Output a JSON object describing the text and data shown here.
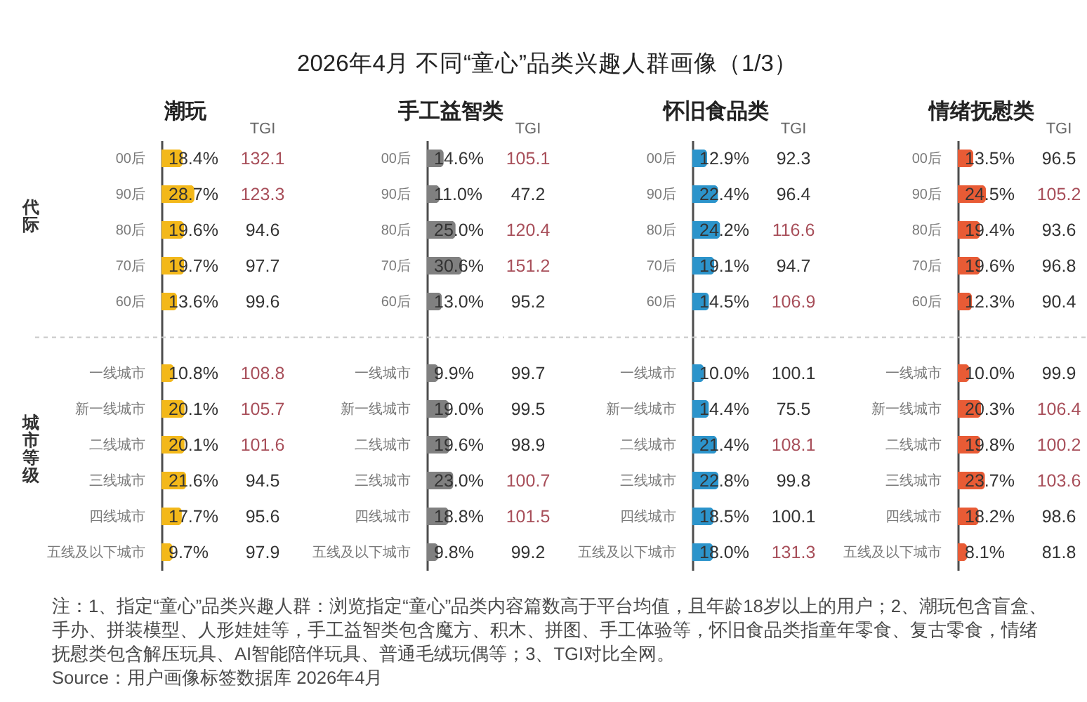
{
  "chart_data": [
    {
      "type": "other",
      "title": "2026年4月 不同“童心”品类兴趣人群画像（1/3）",
      "annotations": [
        "注：1、指定“童心”品类兴趣人群：浏览指定“童心”品类内容篇数高于平台均值，且年龄18岁以上的用户；2、潮玩包含盲盒、手办、拼装模型、人形娃娃等，手工益智类包含魔方、积木、拼图、手工体验等，怀旧食品类指童年零食、复古零食，情绪抚慰类包含解压玩具、AI智能陪伴玩具、普通毛绒玩偶等；3、TGI对比全网。",
        "Source：用户画像标签数据库 2026年4月"
      ]
    },
    {
      "type": "bar",
      "orientation": "horizontal",
      "title": "潮玩",
      "annotations": [
        "代际",
        "城市等级"
      ],
      "categories": [
        "00后",
        "90后",
        "80后",
        "70后",
        "60后",
        "一线城市",
        "新一线城市",
        "二线城市",
        "三线城市",
        "四线城市",
        "五线及以下城市"
      ],
      "series": [
        {
          "color": "#f3b81a",
          "values": [
            18.4,
            28.7,
            19.6,
            19.7,
            13.6,
            10.8,
            20.1,
            20.1,
            21.6,
            17.7,
            9.7
          ],
          "value_labels": [
            "18.4%",
            "28.7%",
            "19.6%",
            "19.7%",
            "13.6%",
            "10.8%",
            "20.1%",
            "20.1%",
            "21.6%",
            "17.7%",
            "9.7%"
          ]
        }
      ]
    },
    {
      "type": "other",
      "title": "TGI",
      "data_labels": true,
      "values": [
        132.1,
        123.3,
        94.6,
        97.7,
        99.6,
        108.8,
        105.7,
        101.6,
        94.5,
        95.6,
        97.9
      ],
      "colors": [
        "#a84f5a",
        "#a84f5a",
        "#333333",
        "#333333",
        "#333333",
        "#a84f5a",
        "#a84f5a",
        "#a84f5a",
        "#333333",
        "#333333",
        "#333333"
      ]
    },
    {
      "type": "bar",
      "orientation": "horizontal",
      "title": "手工益智类",
      "categories": [
        "00后",
        "90后",
        "80后",
        "70后",
        "60后",
        "一线城市",
        "新一线城市",
        "二线城市",
        "三线城市",
        "四线城市",
        "五线及以下城市"
      ],
      "series": [
        {
          "color": "#808080",
          "values": [
            14.6,
            11.0,
            25.0,
            30.6,
            13.0,
            9.9,
            19.0,
            19.6,
            23.0,
            18.8,
            9.8
          ],
          "value_labels": [
            "14.6%",
            "11.0%",
            "25.0%",
            "30.6%",
            "13.0%",
            "9.9%",
            "19.0%",
            "19.6%",
            "23.0%",
            "18.8%",
            "9.8%"
          ]
        }
      ]
    },
    {
      "type": "other",
      "title": "TGI",
      "data_labels": true,
      "values": [
        105.1,
        47.2,
        120.4,
        151.2,
        95.2,
        99.7,
        99.5,
        98.9,
        100.7,
        101.5,
        99.2
      ],
      "colors": [
        "#a84f5a",
        "#333333",
        "#a84f5a",
        "#a84f5a",
        "#333333",
        "#333333",
        "#333333",
        "#333333",
        "#a84f5a",
        "#a84f5a",
        "#333333"
      ]
    },
    {
      "type": "bar",
      "orientation": "horizontal",
      "title": "怀旧食品类",
      "categories": [
        "00后",
        "90后",
        "80后",
        "70后",
        "60后",
        "一线城市",
        "新一线城市",
        "二线城市",
        "三线城市",
        "四线城市",
        "五线及以下城市"
      ],
      "series": [
        {
          "color": "#2c94cb",
          "values": [
            12.9,
            22.4,
            24.2,
            19.1,
            14.5,
            10.0,
            14.4,
            21.4,
            22.8,
            18.5,
            18.0
          ],
          "value_labels": [
            "12.9%",
            "22.4%",
            "24.2%",
            "19.1%",
            "14.5%",
            "10.0%",
            "14.4%",
            "21.4%",
            "22.8%",
            "18.5%",
            "18.0%"
          ]
        }
      ]
    },
    {
      "type": "other",
      "title": "TGI",
      "data_labels": true,
      "values": [
        92.3,
        96.4,
        116.6,
        94.7,
        106.9,
        100.1,
        75.5,
        108.1,
        99.8,
        100.1,
        131.3
      ],
      "colors": [
        "#333333",
        "#333333",
        "#a84f5a",
        "#333333",
        "#a84f5a",
        "#333333",
        "#333333",
        "#a84f5a",
        "#333333",
        "#333333",
        "#a84f5a"
      ]
    },
    {
      "type": "bar",
      "orientation": "horizontal",
      "title": "情绪抚慰类",
      "categories": [
        "00后",
        "90后",
        "80后",
        "70后",
        "60后",
        "一线城市",
        "新一线城市",
        "二线城市",
        "三线城市",
        "四线城市",
        "五线及以下城市"
      ],
      "series": [
        {
          "color": "#e85b35",
          "values": [
            13.5,
            24.5,
            19.4,
            19.6,
            12.3,
            10.0,
            20.3,
            19.8,
            23.7,
            18.2,
            8.1
          ],
          "value_labels": [
            "13.5%",
            "24.5%",
            "19.4%",
            "19.6%",
            "12.3%",
            "10.0%",
            "20.3%",
            "19.8%",
            "23.7%",
            "18.2%",
            "8.1%"
          ]
        }
      ]
    },
    {
      "type": "other",
      "title": "TGI",
      "data_labels": true,
      "values": [
        96.5,
        105.2,
        93.6,
        96.8,
        90.4,
        99.9,
        106.4,
        100.2,
        103.6,
        98.6,
        81.8
      ],
      "colors": [
        "#333333",
        "#a84f5a",
        "#333333",
        "#333333",
        "#333333",
        "#333333",
        "#a84f5a",
        "#a84f5a",
        "#a84f5a",
        "#333333",
        "#333333"
      ]
    }
  ]
}
